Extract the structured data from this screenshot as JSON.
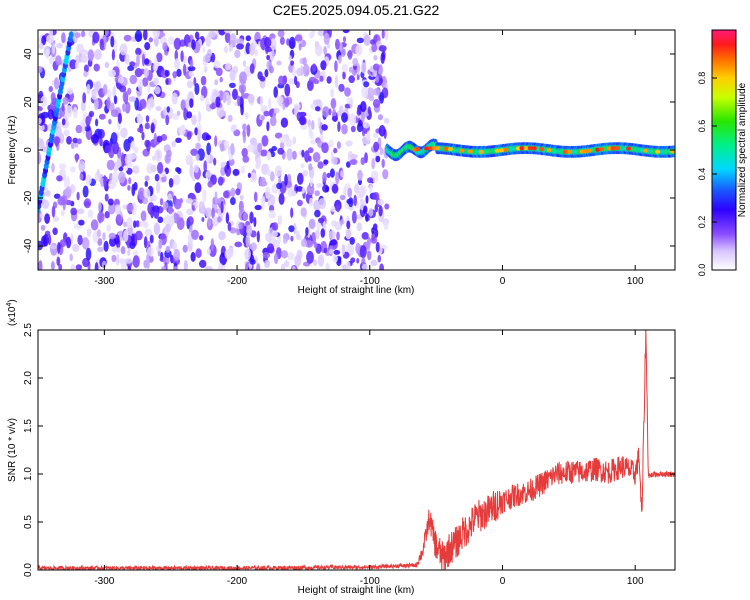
{
  "title": "C2E5.2025.094.05.21.G22",
  "colors": {
    "snr_line": "#e53b3b",
    "axis": "#000000",
    "background": "#ffffff"
  },
  "chart_data": [
    {
      "type": "heatmap",
      "xlabel": "Height of straight line (km)",
      "ylabel": "Frequency (Hz)",
      "xlim": [
        -350,
        130
      ],
      "ylim": [
        -50,
        50
      ],
      "x_ticks": [
        {
          "value": -300,
          "label": "-300"
        },
        {
          "value": -200,
          "label": "-200"
        },
        {
          "value": -100,
          "label": "-100"
        },
        {
          "value": 0,
          "label": "0"
        },
        {
          "value": 100,
          "label": "100"
        }
      ],
      "y_ticks": [
        {
          "value": -40,
          "label": "-40"
        },
        {
          "value": -20,
          "label": "-20"
        },
        {
          "value": 0,
          "label": "0"
        },
        {
          "value": 20,
          "label": "20"
        },
        {
          "value": 40,
          "label": "40"
        }
      ],
      "colorbar": {
        "label": "Normalized spectral amplitude",
        "range": [
          0,
          1
        ],
        "colormap": "rainbow (white→purple→blue→cyan→green→yellow→orange→red→magenta)",
        "ticks": [
          {
            "value": 0.0,
            "label": "0.0"
          },
          {
            "value": 0.2,
            "label": "0.2"
          },
          {
            "value": 0.4,
            "label": "0.4"
          },
          {
            "value": 0.6,
            "label": "0.6"
          },
          {
            "value": 0.8,
            "label": "0.8"
          }
        ]
      },
      "regions": [
        {
          "x_range": [
            -350,
            -87
          ],
          "description": "broadband noise, amplitude ~0.1-0.3 across all frequencies"
        },
        {
          "x_range": [
            -87,
            130
          ],
          "description": "narrow band near 0 Hz (about -2 to 3 Hz), amplitude 0.5-0.9"
        },
        {
          "line": "steep ridge from (-350, -25) to (-325, 48) Hz"
        }
      ]
    },
    {
      "type": "line",
      "xlabel": "Height of straight line (km)",
      "ylabel": "SNR (10 * v/v)",
      "multiplier_label": "(x10",
      "multiplier_exp": "4",
      "multiplier_close": ")",
      "xlim": [
        -350,
        130
      ],
      "ylim": [
        0,
        2.5
      ],
      "x_ticks": [
        {
          "value": -300,
          "label": "-300"
        },
        {
          "value": -200,
          "label": "-200"
        },
        {
          "value": -100,
          "label": "-100"
        },
        {
          "value": 0,
          "label": "0"
        },
        {
          "value": 100,
          "label": "100"
        }
      ],
      "y_ticks": [
        {
          "value": 0.0,
          "label": "0.0"
        },
        {
          "value": 0.5,
          "label": "0.5"
        },
        {
          "value": 1.0,
          "label": "1.0"
        },
        {
          "value": 1.5,
          "label": "1.5"
        },
        {
          "value": 2.0,
          "label": "2.0"
        },
        {
          "value": 2.5,
          "label": "2.5"
        }
      ],
      "series": [
        {
          "x": [
            -350,
            -300,
            -200,
            -100,
            -65,
            -60,
            -55,
            -52,
            -50,
            -45,
            -40,
            -35,
            -30,
            -25,
            -20,
            -15,
            -10,
            -5,
            0,
            10,
            20,
            30,
            40,
            50,
            60,
            70,
            80,
            90,
            95,
            100,
            103,
            105,
            107,
            108,
            110,
            115,
            120,
            130
          ],
          "y": [
            0.02,
            0.02,
            0.02,
            0.03,
            0.05,
            0.2,
            0.55,
            0.35,
            0.25,
            0.12,
            0.22,
            0.28,
            0.38,
            0.45,
            0.55,
            0.58,
            0.62,
            0.68,
            0.72,
            0.78,
            0.82,
            0.9,
            1.0,
            1.02,
            1.02,
            1.05,
            1.02,
            1.08,
            1.05,
            1.0,
            1.2,
            0.5,
            1.8,
            2.5,
            0.98,
            1.0,
            1.0,
            1.0
          ]
        }
      ]
    }
  ]
}
